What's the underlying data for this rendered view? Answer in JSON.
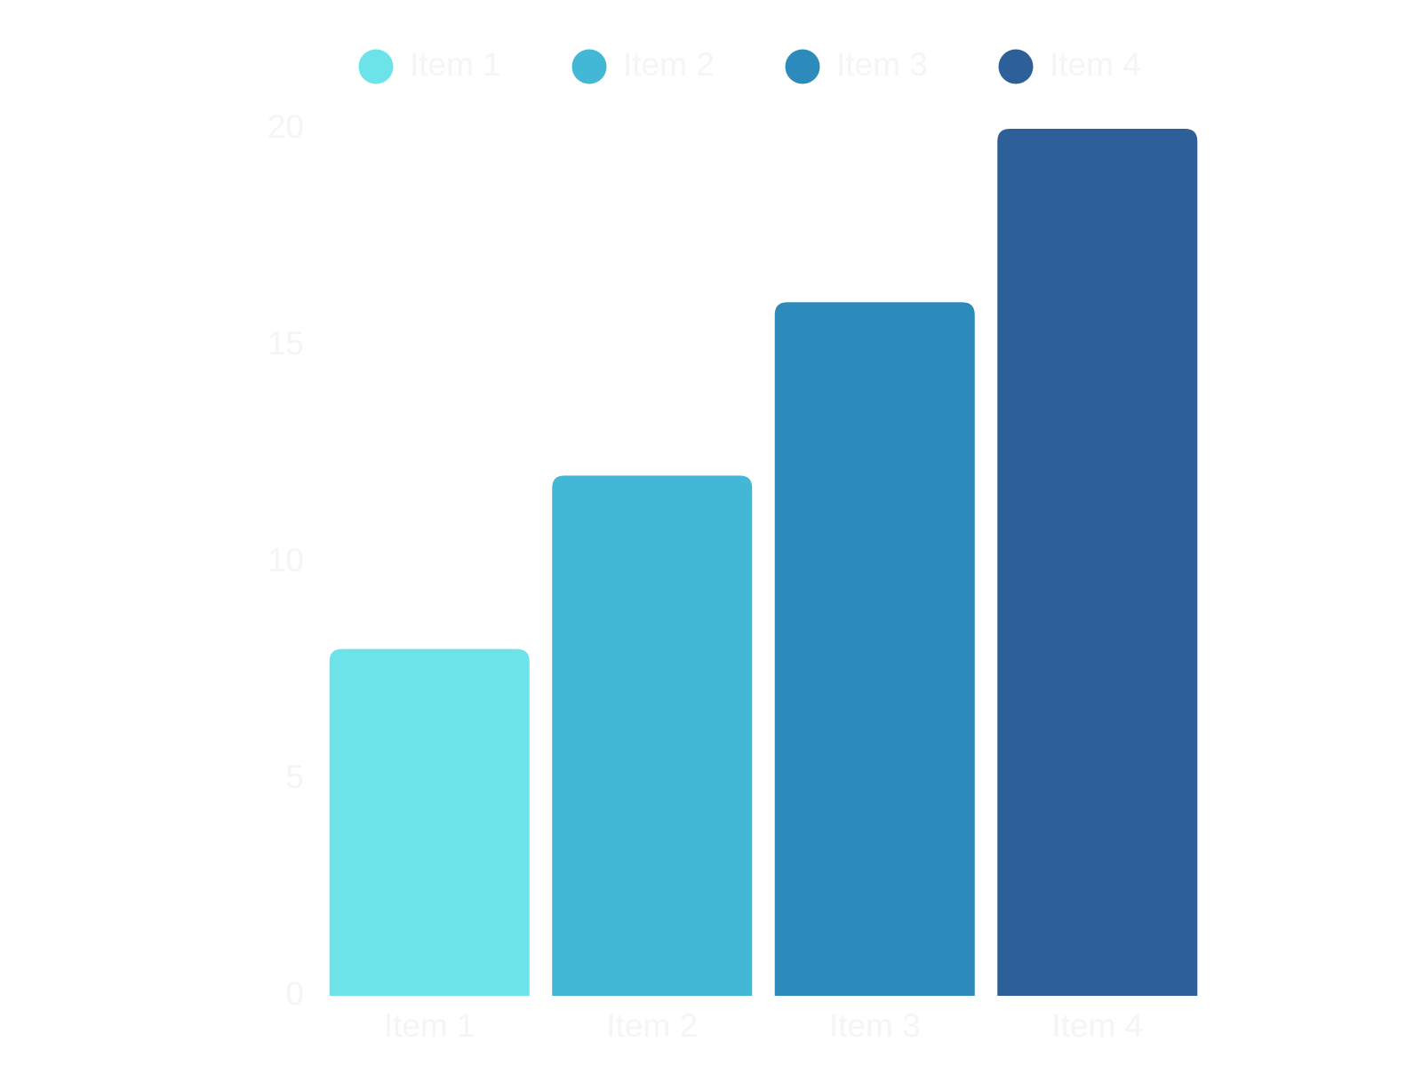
{
  "chart_data": {
    "type": "bar",
    "categories": [
      "Item 1",
      "Item 2",
      "Item 3",
      "Item 4"
    ],
    "values": [
      8,
      12,
      16,
      20
    ],
    "colors": [
      "#6ce3e8",
      "#42b7d6",
      "#2c8bba",
      "#2d5f98"
    ],
    "ylim": [
      0,
      20
    ],
    "yticks": [
      0,
      5,
      10,
      15,
      20
    ],
    "grid": false,
    "legend": "top"
  }
}
